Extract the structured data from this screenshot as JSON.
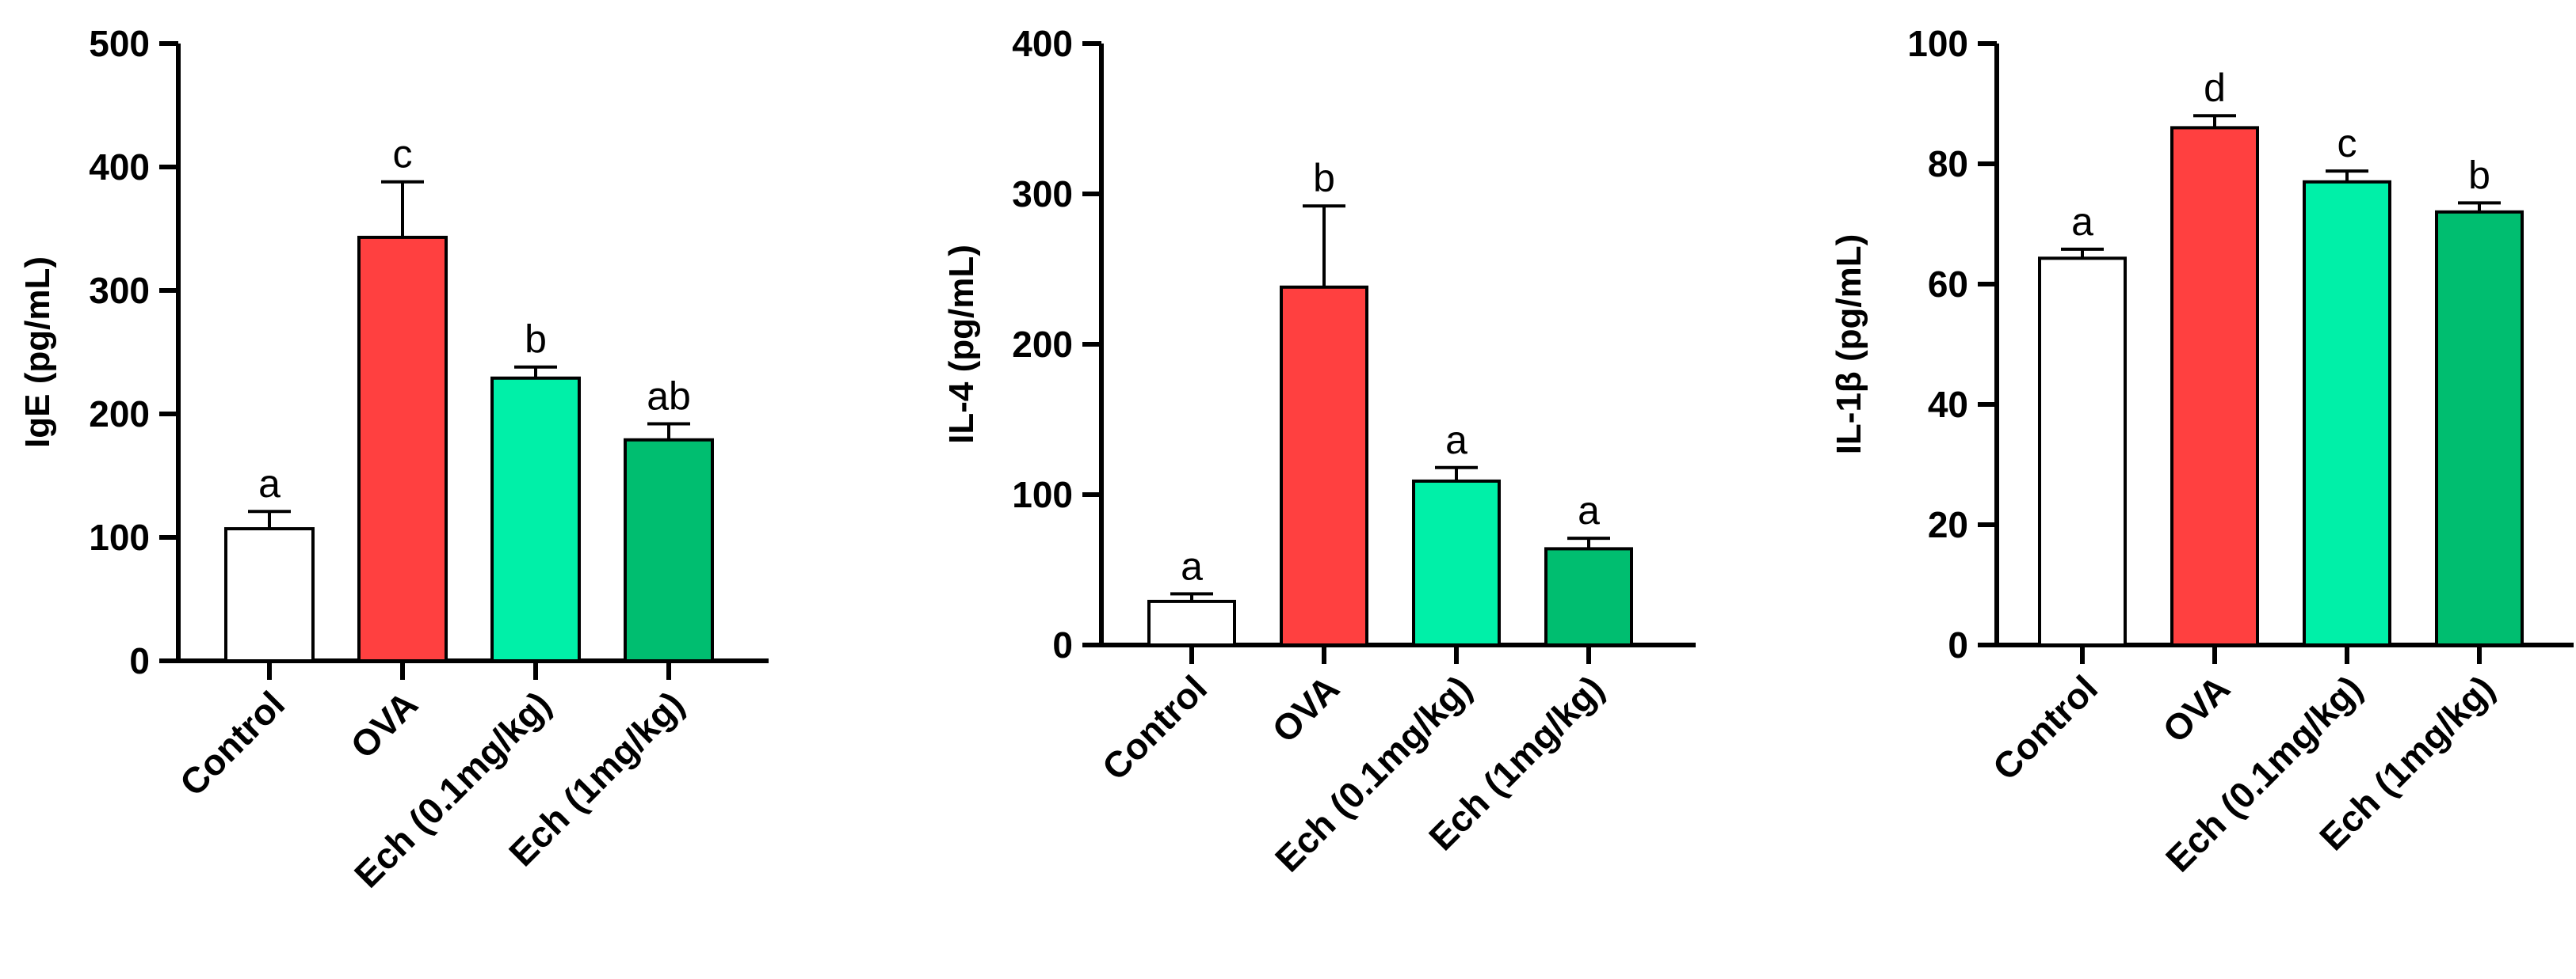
{
  "chart_data": [
    {
      "type": "bar",
      "categories": [
        "Control",
        "OVA",
        "Ech (0.1mg/kg)",
        "Ech (1mg/kg)"
      ],
      "values": [
        107,
        343,
        229,
        179
      ],
      "errors": [
        14,
        45,
        9,
        13
      ],
      "significance": [
        "a",
        "c",
        "b",
        "ab"
      ],
      "colors": [
        "#ffffff",
        "#ff4040",
        "#00f0a8",
        "#00be70"
      ],
      "ylabel": "IgE (pg/mL)",
      "ylim": [
        0,
        500
      ],
      "yticks": [
        "0",
        "100",
        "200",
        "300",
        "400",
        "500"
      ],
      "title": "",
      "xlabel": ""
    },
    {
      "type": "bar",
      "categories": [
        "Control",
        "OVA",
        "Ech (0.1mg/kg)",
        "Ech (1mg/kg)"
      ],
      "values": [
        29,
        238,
        109,
        64
      ],
      "errors": [
        5,
        54,
        9,
        7
      ],
      "significance": [
        "a",
        "b",
        "a",
        "a"
      ],
      "colors": [
        "#ffffff",
        "#ff4040",
        "#00f0a8",
        "#00be70"
      ],
      "ylabel": "IL-4 (pg/mL)",
      "ylim": [
        0,
        400
      ],
      "yticks": [
        "0",
        "100",
        "200",
        "300",
        "400"
      ],
      "title": "",
      "xlabel": ""
    },
    {
      "type": "bar",
      "categories": [
        "Control",
        "OVA",
        "Ech (0.1mg/kg)",
        "Ech (1mg/kg)"
      ],
      "values": [
        64.3,
        86,
        77,
        72
      ],
      "errors": [
        1.5,
        2,
        1.8,
        1.5
      ],
      "significance": [
        "a",
        "d",
        "c",
        "b"
      ],
      "colors": [
        "#ffffff",
        "#ff4040",
        "#00f0a8",
        "#00be70"
      ],
      "ylabel": "IL-1β (pg/mL)",
      "ylim": [
        0,
        100
      ],
      "yticks": [
        "0",
        "20",
        "40",
        "60",
        "80",
        "100"
      ],
      "title": "",
      "xlabel": ""
    }
  ]
}
